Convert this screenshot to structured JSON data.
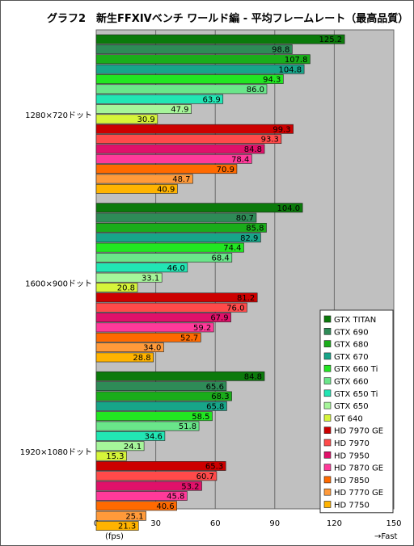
{
  "title": "グラフ2　新生FFXIVベンチ ワールド編 - 平均フレームレート（最高品質）",
  "chart_data": {
    "type": "bar",
    "orientation": "horizontal",
    "groups": [
      "1280×720ドット",
      "1600×900ドット",
      "1920×1080ドット"
    ],
    "series": [
      {
        "name": "GTX TITAN",
        "color": "#0b7a0b",
        "values": [
          125.2,
          104.0,
          84.8
        ]
      },
      {
        "name": "GTX 690",
        "color": "#2e8b57",
        "values": [
          98.8,
          80.7,
          65.6
        ]
      },
      {
        "name": "GTX 680",
        "color": "#1aad1a",
        "values": [
          107.8,
          85.8,
          68.3
        ]
      },
      {
        "name": "GTX 670",
        "color": "#17a589",
        "values": [
          104.8,
          82.9,
          65.8
        ]
      },
      {
        "name": "GTX 660 Ti",
        "color": "#22e622",
        "values": [
          94.3,
          74.4,
          58.5
        ]
      },
      {
        "name": "GTX 660",
        "color": "#6ae68a",
        "values": [
          86.0,
          68.4,
          51.8
        ]
      },
      {
        "name": "GTX 650 Ti",
        "color": "#22e6b4",
        "values": [
          63.9,
          46.0,
          34.6
        ]
      },
      {
        "name": "GTX 650",
        "color": "#a6f59a",
        "values": [
          47.9,
          33.1,
          24.1
        ]
      },
      {
        "name": "GT 640",
        "color": "#d6f53a",
        "values": [
          30.9,
          20.8,
          15.3
        ]
      },
      {
        "name": "HD 7970 GE",
        "color": "#cc0000",
        "values": [
          99.3,
          81.2,
          65.3
        ]
      },
      {
        "name": "HD 7970",
        "color": "#ff4a4a",
        "values": [
          93.3,
          76.0,
          60.7
        ]
      },
      {
        "name": "HD 7950",
        "color": "#e0116a",
        "values": [
          84.8,
          67.9,
          53.2
        ]
      },
      {
        "name": "HD 7870 GE",
        "color": "#ff3a9a",
        "values": [
          78.4,
          59.2,
          45.8
        ]
      },
      {
        "name": "HD 7850",
        "color": "#ff6a00",
        "values": [
          70.9,
          52.7,
          40.6
        ]
      },
      {
        "name": "HD 7770 GE",
        "color": "#ff9a3a",
        "values": [
          48.7,
          34.0,
          25.1
        ]
      },
      {
        "name": "HD 7750",
        "color": "#ffb300",
        "values": [
          40.9,
          28.8,
          21.3
        ]
      }
    ],
    "xlim": [
      0,
      150
    ],
    "xticks": [
      "0",
      "30",
      "60",
      "90",
      "120",
      "150"
    ],
    "xlabel": "(fps)",
    "direction_label": "→Fast",
    "grid": true,
    "legend": "bottom-right",
    "plot_background": "#c0c0c0"
  }
}
